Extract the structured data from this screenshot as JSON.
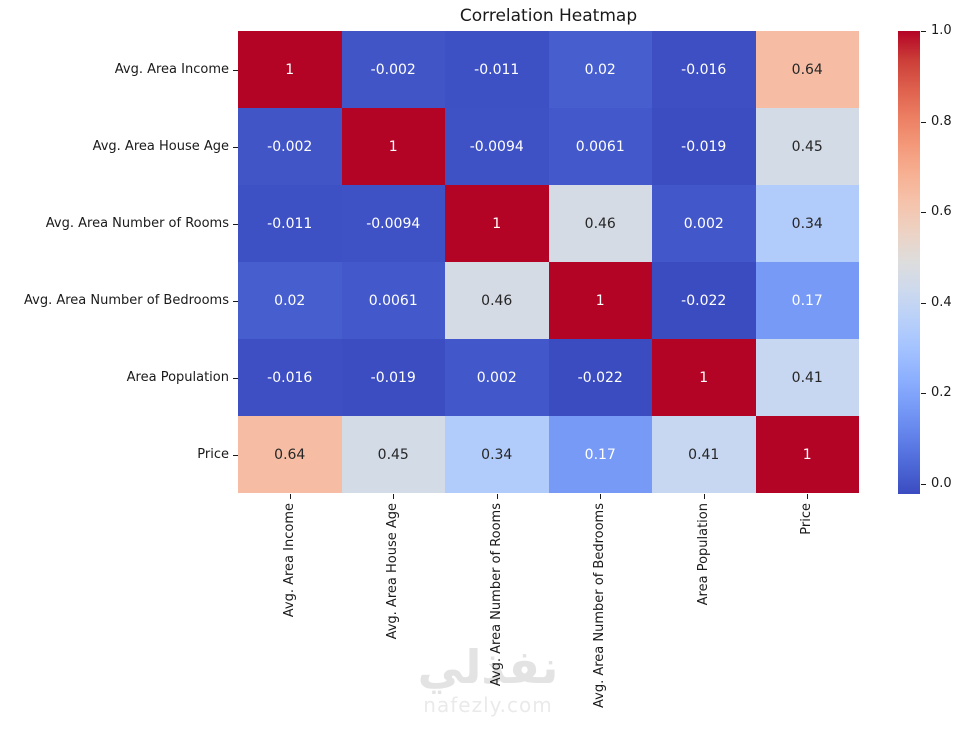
{
  "chart_data": {
    "type": "heatmap",
    "title": "Correlation Heatmap",
    "categories": [
      "Avg. Area Income",
      "Avg. Area House Age",
      "Avg. Area Number of Rooms",
      "Avg. Area Number of Bedrooms",
      "Area Population",
      "Price"
    ],
    "matrix": [
      [
        "1",
        "-0.002",
        "-0.011",
        "0.02",
        "-0.016",
        "0.64"
      ],
      [
        "-0.002",
        "1",
        "-0.0094",
        "0.0061",
        "-0.019",
        "0.45"
      ],
      [
        "-0.011",
        "-0.0094",
        "1",
        "0.46",
        "0.002",
        "0.34"
      ],
      [
        "0.02",
        "0.0061",
        "0.46",
        "1",
        "-0.022",
        "0.17"
      ],
      [
        "-0.016",
        "-0.019",
        "0.002",
        "-0.022",
        "1",
        "0.41"
      ],
      [
        "0.64",
        "0.45",
        "0.34",
        "0.17",
        "0.41",
        "1"
      ]
    ],
    "colormap": "coolwarm",
    "vmin": -0.022,
    "vmax": 1.0,
    "colorbar": {
      "position": "right",
      "tick_labels": [
        "1.0",
        "0.8",
        "0.6",
        "0.4",
        "0.2",
        "0.0"
      ]
    },
    "grid": false,
    "annotated": true
  },
  "watermark": {
    "logo": "نفذلي",
    "domain": "nafezly.com"
  },
  "colors": {
    "cold": "#3B4CC0",
    "mid": "#DDDDDD",
    "hot": "#B40426",
    "dark_text": "#262626",
    "light_text": "#FFFFFF"
  }
}
